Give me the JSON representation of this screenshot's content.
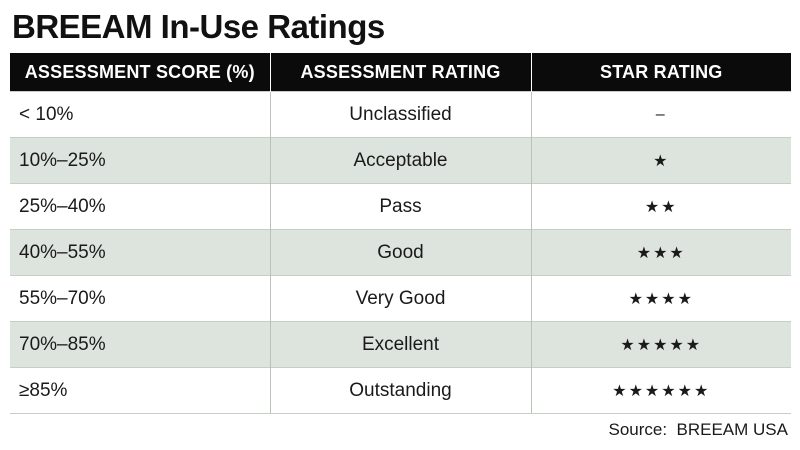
{
  "title": "BREEAM In-Use Ratings",
  "columns": {
    "score": "ASSESSMENT SCORE (%)",
    "rating": "ASSESSMENT RATING",
    "stars": "STAR RATING"
  },
  "rows": [
    {
      "score": "< 10%",
      "rating": "Unclassified",
      "stars": "–"
    },
    {
      "score": "10%–25%",
      "rating": "Acceptable",
      "stars": "★"
    },
    {
      "score": "25%–40%",
      "rating": "Pass",
      "stars": "★★"
    },
    {
      "score": "40%–55%",
      "rating": "Good",
      "stars": "★★★"
    },
    {
      "score": "55%–70%",
      "rating": "Very Good",
      "stars": "★★★★"
    },
    {
      "score": "70%–85%",
      "rating": "Excellent",
      "stars": "★★★★★"
    },
    {
      "score": "≥85%",
      "rating": "Outstanding",
      "stars": "★★★★★★"
    }
  ],
  "source": "Source:  BREEAM USA",
  "colors": {
    "header_bg": "#0b0b0b",
    "alt_row_bg": "#dde4dd"
  }
}
